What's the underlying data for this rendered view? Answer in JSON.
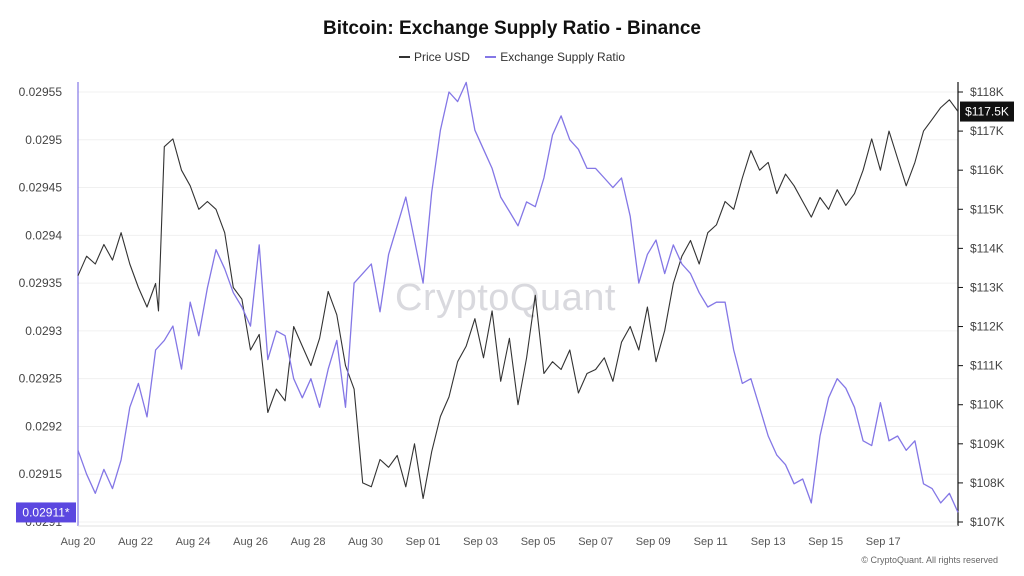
{
  "title": "Bitcoin: Exchange Supply Ratio - Binance",
  "legend": [
    {
      "name": "Price USD",
      "color": "#333333"
    },
    {
      "name": "Exchange Supply Ratio",
      "color": "#8477e6"
    }
  ],
  "watermark": "CryptoQuant",
  "footer": "© CryptoQuant. All rights reserved",
  "colors": {
    "price": "#333333",
    "ratio": "#8477e6",
    "ratio_badge": "#5b47e0",
    "price_badge": "#111111"
  },
  "chart_data": {
    "type": "line",
    "x_ticks": [
      "Aug 20",
      "Aug 22",
      "Aug 24",
      "Aug 26",
      "Aug 28",
      "Aug 30",
      "Sep 01",
      "Sep 03",
      "Sep 05",
      "Sep 07",
      "Sep 09",
      "Sep 11",
      "Sep 13",
      "Sep 15",
      "Sep 17"
    ],
    "x_day_range": [
      0,
      30.6
    ],
    "left_axis": {
      "ticks": [
        "0.02955",
        "0.0295",
        "0.02945",
        "0.0294",
        "0.02935",
        "0.0293",
        "0.02925",
        "0.0292",
        "0.02915",
        "0.0291"
      ],
      "ylim": [
        0.0291,
        0.02955
      ],
      "current_label": "0.02911*"
    },
    "right_axis": {
      "ticks": [
        "$118K",
        "$117K",
        "$116K",
        "$115K",
        "$114K",
        "$113K",
        "$112K",
        "$111K",
        "$110K",
        "$109K",
        "$108K",
        "$107K"
      ],
      "ylim": [
        107000,
        118000
      ],
      "current_label": "$117.5K"
    },
    "grid": true,
    "series": [
      {
        "name": "Price USD",
        "axis": "right",
        "x": [
          0,
          0.3,
          0.6,
          0.9,
          1.2,
          1.5,
          1.8,
          2.1,
          2.4,
          2.7,
          2.8,
          3.0,
          3.3,
          3.6,
          3.9,
          4.2,
          4.5,
          4.8,
          5.1,
          5.4,
          5.7,
          6.0,
          6.3,
          6.6,
          6.9,
          7.2,
          7.5,
          7.8,
          8.1,
          8.4,
          8.7,
          9.0,
          9.3,
          9.6,
          9.9,
          10.2,
          10.5,
          10.8,
          11.1,
          11.4,
          11.7,
          12.0,
          12.3,
          12.6,
          12.9,
          13.2,
          13.5,
          13.8,
          14.1,
          14.4,
          14.7,
          15.0,
          15.3,
          15.6,
          15.9,
          16.2,
          16.5,
          16.8,
          17.1,
          17.4,
          17.7,
          18.0,
          18.3,
          18.6,
          18.9,
          19.2,
          19.5,
          19.8,
          20.1,
          20.4,
          20.7,
          21.0,
          21.3,
          21.6,
          21.9,
          22.2,
          22.5,
          22.8,
          23.1,
          23.4,
          23.7,
          24.0,
          24.3,
          24.6,
          24.9,
          25.2,
          25.5,
          25.8,
          26.1,
          26.4,
          26.7,
          27.0,
          27.3,
          27.6,
          27.9,
          28.2,
          28.5,
          28.8,
          29.1,
          29.4,
          29.7,
          30.0,
          30.3,
          30.6
        ],
        "values": [
          113.3,
          113.8,
          113.6,
          114.1,
          113.7,
          114.4,
          113.6,
          113.0,
          112.5,
          113.1,
          112.4,
          116.6,
          116.8,
          116.0,
          115.6,
          115.0,
          115.2,
          115.0,
          114.4,
          113.0,
          112.7,
          111.4,
          111.8,
          109.8,
          110.4,
          110.1,
          112.0,
          111.5,
          111.0,
          111.7,
          112.9,
          112.3,
          111.0,
          110.4,
          108.0,
          107.9,
          108.6,
          108.4,
          108.7,
          107.9,
          109.0,
          107.6,
          108.8,
          109.7,
          110.2,
          111.1,
          111.5,
          112.2,
          111.2,
          112.4,
          110.6,
          111.7,
          110.0,
          111.2,
          112.8,
          110.8,
          111.1,
          110.9,
          111.4,
          110.3,
          110.8,
          110.9,
          111.2,
          110.6,
          111.6,
          112.0,
          111.4,
          112.5,
          111.1,
          111.9,
          113.1,
          113.8,
          114.2,
          113.6,
          114.4,
          114.6,
          115.2,
          115.0,
          115.8,
          116.5,
          116.0,
          116.2,
          115.4,
          115.9,
          115.6,
          115.2,
          114.8,
          115.3,
          115.0,
          115.5,
          115.1,
          115.4,
          116.0,
          116.8,
          116.0,
          117.0,
          116.3,
          115.6,
          116.2,
          117.0,
          117.3,
          117.6,
          117.8,
          117.5
        ]
      },
      {
        "name": "Exchange Supply Ratio",
        "axis": "left",
        "x": [
          0,
          0.3,
          0.6,
          0.9,
          1.2,
          1.5,
          1.8,
          2.1,
          2.4,
          2.7,
          3.0,
          3.3,
          3.6,
          3.9,
          4.2,
          4.5,
          4.8,
          5.1,
          5.4,
          5.7,
          6.0,
          6.3,
          6.6,
          6.9,
          7.2,
          7.5,
          7.8,
          8.1,
          8.4,
          8.7,
          9.0,
          9.3,
          9.6,
          9.9,
          10.2,
          10.5,
          10.8,
          11.1,
          11.4,
          11.7,
          12.0,
          12.3,
          12.6,
          12.9,
          13.2,
          13.5,
          13.8,
          14.1,
          14.4,
          14.7,
          15.0,
          15.3,
          15.6,
          15.9,
          16.2,
          16.5,
          16.8,
          17.1,
          17.4,
          17.7,
          18.0,
          18.3,
          18.6,
          18.9,
          19.2,
          19.5,
          19.8,
          20.1,
          20.4,
          20.7,
          21.0,
          21.3,
          21.6,
          21.9,
          22.2,
          22.5,
          22.8,
          23.1,
          23.4,
          23.7,
          24.0,
          24.3,
          24.6,
          24.9,
          25.2,
          25.5,
          25.8,
          26.1,
          26.4,
          26.7,
          27.0,
          27.3,
          27.6,
          27.9,
          28.2,
          28.5,
          28.8,
          29.1,
          29.4,
          29.7,
          30.0,
          30.3,
          30.6
        ],
        "values": [
          0.029175,
          0.02915,
          0.02913,
          0.029155,
          0.029135,
          0.029165,
          0.02922,
          0.029245,
          0.02921,
          0.02928,
          0.02929,
          0.029305,
          0.02926,
          0.02933,
          0.029295,
          0.029345,
          0.029385,
          0.029365,
          0.02934,
          0.029325,
          0.029305,
          0.02939,
          0.02927,
          0.0293,
          0.029295,
          0.02925,
          0.02923,
          0.02925,
          0.02922,
          0.02926,
          0.02929,
          0.02922,
          0.02935,
          0.02936,
          0.02937,
          0.02932,
          0.02938,
          0.02941,
          0.02944,
          0.029395,
          0.02935,
          0.029445,
          0.02951,
          0.02955,
          0.02954,
          0.02956,
          0.02951,
          0.02949,
          0.02947,
          0.02944,
          0.029425,
          0.02941,
          0.029435,
          0.02943,
          0.02946,
          0.029505,
          0.029525,
          0.0295,
          0.02949,
          0.02947,
          0.02947,
          0.02946,
          0.02945,
          0.02946,
          0.02942,
          0.02935,
          0.02938,
          0.029395,
          0.02936,
          0.02939,
          0.02937,
          0.02936,
          0.02934,
          0.029325,
          0.02933,
          0.02933,
          0.02928,
          0.029245,
          0.02925,
          0.02922,
          0.02919,
          0.02917,
          0.02916,
          0.02914,
          0.029145,
          0.02912,
          0.02919,
          0.02923,
          0.02925,
          0.02924,
          0.02922,
          0.029185,
          0.02918,
          0.029225,
          0.029185,
          0.02919,
          0.029175,
          0.029185,
          0.02914,
          0.029135,
          0.02912,
          0.02913,
          0.02911
        ]
      }
    ]
  }
}
